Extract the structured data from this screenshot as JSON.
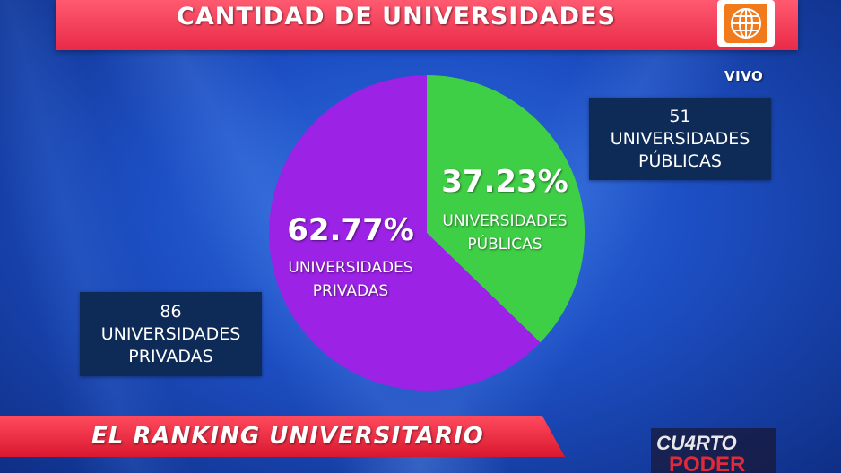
{
  "title": "CANTIDAD DE UNIVERSIDADES",
  "channel": {
    "live_label": "VIVO",
    "logo_icon": "globe-icon"
  },
  "info_boxes": {
    "publicas": {
      "count": "51",
      "line1": "UNIVERSIDADES",
      "line2": "PÚBLICAS"
    },
    "privadas": {
      "count": "86",
      "line1": "UNIVERSIDADES",
      "line2": "PRIVADAS"
    }
  },
  "chart_data": {
    "type": "pie",
    "title": "",
    "series": [
      {
        "label": "37.23%",
        "line1": "UNIVERSIDADES",
        "line2": "PÚBLICAS",
        "value": 37.23,
        "color": "#3fcf46"
      },
      {
        "label": "62.77%",
        "line1": "UNIVERSIDADES",
        "line2": "PRIVADAS",
        "value": 62.77,
        "color": "#9c22e6"
      }
    ]
  },
  "lower_third": {
    "text": "EL RANKING UNIVERSITARIO"
  },
  "show_logo": {
    "line1": "CU4RTO",
    "line2": "PODER"
  },
  "colors": {
    "title_bar": "#e92a48",
    "lower_bar": "#d9182f",
    "info_box": "#0e2a56",
    "logo": "#f07a1c"
  }
}
